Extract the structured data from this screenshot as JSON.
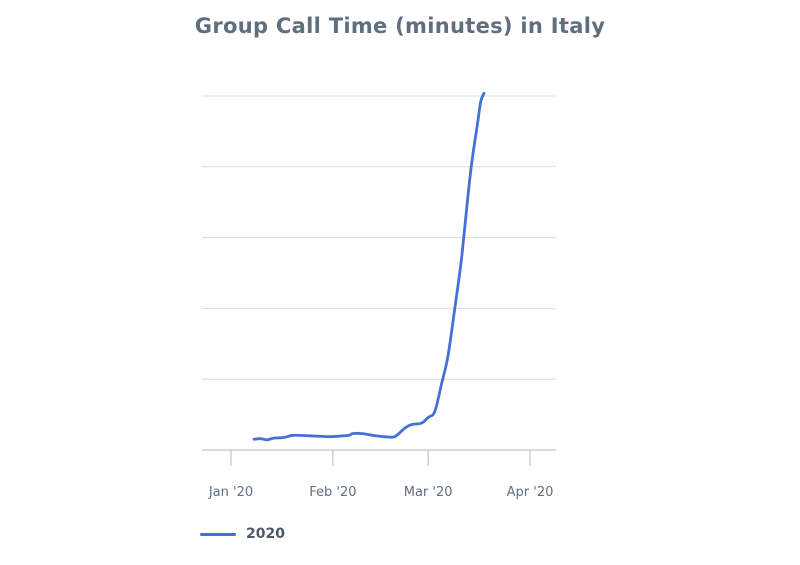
{
  "title": "Group Call Time (minutes) in Italy",
  "colors": {
    "line": "#4471d6",
    "grid": "#dcdcdc",
    "axis": "#c4c4c4",
    "tick_text": "#5f6f80"
  },
  "chart_data": {
    "type": "line",
    "title": "Group Call Time (minutes) in Italy",
    "xlabel": "",
    "ylabel": "",
    "x_ticks": [
      "Jan '20",
      "Feb '20",
      "Mar '20",
      "Apr '20"
    ],
    "y_ticks_shown": false,
    "grid": true,
    "legend": "bottom-left",
    "series": [
      {
        "name": "2020",
        "x": [
          "2020-01-08",
          "2020-01-10",
          "2020-01-12",
          "2020-01-14",
          "2020-01-17",
          "2020-01-20",
          "2020-01-25",
          "2020-01-31",
          "2020-02-03",
          "2020-02-06",
          "2020-02-07",
          "2020-02-10",
          "2020-02-14",
          "2020-02-18",
          "2020-02-20",
          "2020-02-23",
          "2020-02-25",
          "2020-02-28",
          "2020-03-01",
          "2020-03-03",
          "2020-03-05",
          "2020-03-07",
          "2020-03-09",
          "2020-03-11",
          "2020-03-12",
          "2020-03-14",
          "2020-03-16",
          "2020-03-17",
          "2020-03-18"
        ],
        "values": [
          0.38,
          0.4,
          0.36,
          0.42,
          0.44,
          0.52,
          0.5,
          0.47,
          0.49,
          0.52,
          0.58,
          0.58,
          0.5,
          0.46,
          0.48,
          0.78,
          0.9,
          0.95,
          1.15,
          1.35,
          2.3,
          3.3,
          4.9,
          6.6,
          7.7,
          9.9,
          11.5,
          12.3,
          12.6
        ],
        "color": "#4471d6"
      }
    ]
  }
}
